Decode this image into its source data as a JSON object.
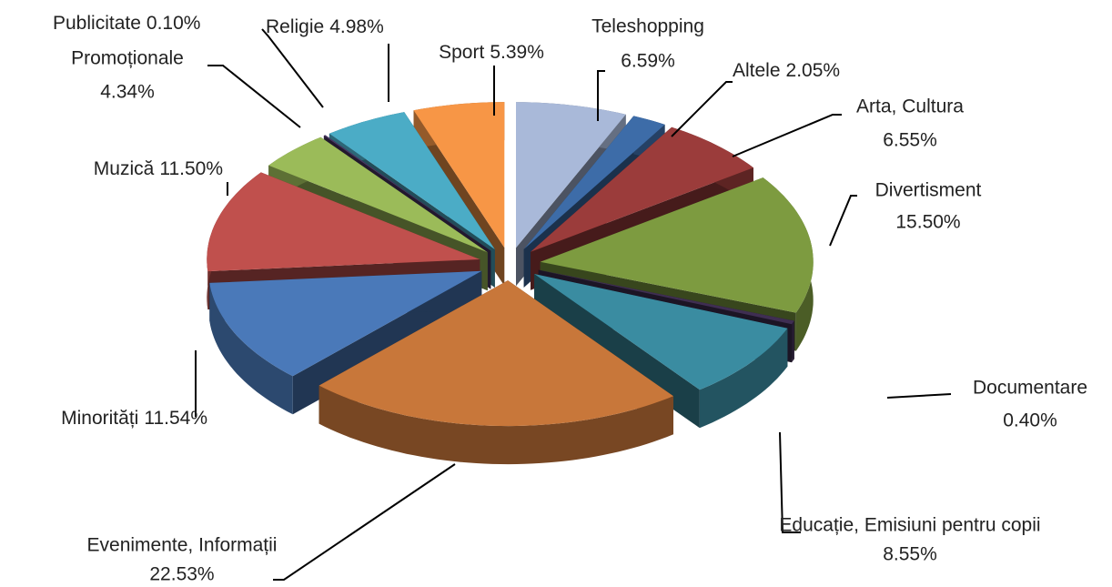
{
  "chart_data": {
    "type": "pie",
    "categories": [
      "Teleshopping",
      "Altele",
      "Arta, Cultura",
      "Divertisment",
      "Documentare",
      "Educație, Emisiuni pentru copii",
      "Evenimente, Informații",
      "Minorități",
      "Muzică",
      "Promoționale",
      "Publicitate",
      "Religie",
      "Sport"
    ],
    "values": [
      6.59,
      2.05,
      6.55,
      15.5,
      0.4,
      8.55,
      22.53,
      11.54,
      11.5,
      4.34,
      0.1,
      4.98,
      5.39
    ],
    "value_labels": [
      "6.59%",
      "2.05%",
      "6.55%",
      "15.50%",
      "0.40%",
      "8.55%",
      "22.53%",
      "11.54%",
      "11.50%",
      "4.34%",
      "0.10%",
      "4.98%",
      "5.39%"
    ],
    "colors": [
      "#a9b9d9",
      "#3d6ca8",
      "#9b3c3b",
      "#7d9b40",
      "#3f2e52",
      "#3a8ca1",
      "#c8773a",
      "#4a79b9",
      "#c0504d",
      "#9bbb59",
      "#4b3866",
      "#4bacc6",
      "#f79646"
    ]
  }
}
